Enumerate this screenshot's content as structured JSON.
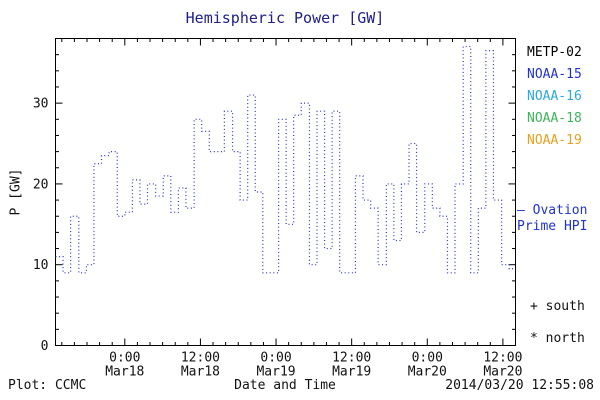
{
  "title": "Hemispheric Power [GW]",
  "ylabel": "P [GW]",
  "footer": {
    "plot_credit": "Plot: CCMC",
    "xlabel": "Date and Time",
    "timestamp": "2014/03/20 12:55:08"
  },
  "legend": {
    "satellites": [
      {
        "label": "METP-02",
        "color": "#000000"
      },
      {
        "label": "NOAA-15",
        "color": "#2233cc"
      },
      {
        "label": "NOAA-16",
        "color": "#2aa8dc"
      },
      {
        "label": "NOAA-18",
        "color": "#3cb45a"
      },
      {
        "label": "NOAA-19",
        "color": "#e8a020"
      }
    ],
    "ovation": {
      "line1": "— Ovation",
      "line2": "Prime HPI",
      "color": "#2233cc"
    },
    "south_label": "+ south",
    "north_label": "* north"
  },
  "chart_data": {
    "type": "line",
    "style": "step-dotted",
    "title": "Hemispheric Power [GW]",
    "xlabel": "Date and Time",
    "ylabel": "P [GW]",
    "ylim": [
      0,
      38
    ],
    "yticks": [
      0,
      10,
      20,
      30
    ],
    "y_minor_step": 2,
    "x_hours_total": 73,
    "x_end_hour": 72.6,
    "x_minor_step": 2,
    "grid": false,
    "legend_position": "right",
    "line_color": "#2233cc",
    "xticks": [
      {
        "hour": 11,
        "time": "0:00",
        "date": "Mar18"
      },
      {
        "hour": 23,
        "time": "12:00",
        "date": "Mar18"
      },
      {
        "hour": 35,
        "time": "0:00",
        "date": "Mar19"
      },
      {
        "hour": 47,
        "time": "12:00",
        "date": "Mar19"
      },
      {
        "hour": 59,
        "time": "0:00",
        "date": "Mar20"
      },
      {
        "hour": 71,
        "time": "12:00",
        "date": "Mar20"
      }
    ],
    "series": [
      {
        "name": "Ovation Prime HPI",
        "unit": "GW",
        "x_hours": [
          0,
          1.2,
          2.4,
          3.7,
          4.9,
          6.1,
          7.3,
          8.5,
          9.8,
          11.0,
          12.2,
          13.4,
          14.6,
          15.9,
          17.1,
          18.3,
          19.5,
          20.7,
          22.0,
          23.2,
          24.4,
          25.6,
          26.8,
          28.1,
          29.3,
          30.5,
          31.7,
          32.9,
          34.2,
          35.4,
          36.6,
          37.8,
          39.0,
          40.3,
          41.5,
          42.7,
          43.9,
          45.1,
          46.4,
          47.6,
          48.8,
          50.0,
          51.2,
          52.5,
          53.7,
          54.9,
          56.1,
          57.3,
          58.6,
          59.8,
          61.0,
          62.2,
          63.4,
          64.7,
          65.9,
          67.1,
          68.3,
          69.5,
          70.8,
          72.0
        ],
        "values": [
          11,
          9,
          16,
          9,
          10,
          22.5,
          23.5,
          24,
          16,
          16.5,
          20.5,
          17.5,
          20,
          18.5,
          21,
          16.5,
          19.5,
          17,
          28,
          26.5,
          24,
          24,
          29,
          24,
          18,
          31,
          19,
          9,
          9,
          28,
          15,
          28.5,
          30,
          10,
          29,
          12,
          29,
          9,
          9,
          21,
          18,
          17,
          10,
          20,
          13,
          20,
          25,
          14,
          20,
          17,
          16,
          9,
          20,
          37,
          9,
          17,
          36.5,
          18,
          10,
          9.5
        ]
      }
    ]
  }
}
